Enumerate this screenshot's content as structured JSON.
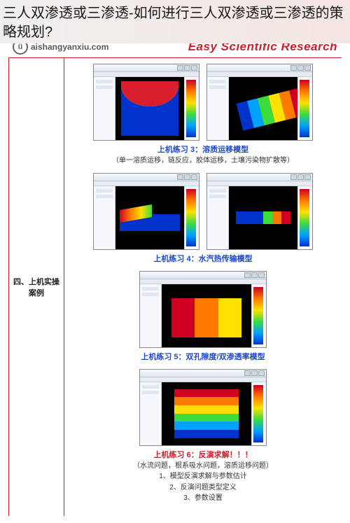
{
  "page_title": "三人双渗透或三渗透-如何进行三人双渗透或三渗透的策略规划?",
  "watermark": {
    "logo_glyph": "ü",
    "url": "aishangyanxiu.com",
    "tagline": "Easy Scientific Research"
  },
  "border_color": "#cc1f2a",
  "side_label": "四、上机实操案例",
  "palette": [
    "#d00022",
    "#ff7a00",
    "#ffe100",
    "#3ddc3d",
    "#00a2ff",
    "#0033cc"
  ],
  "exercises": {
    "e3": {
      "title": "上机练习 3：溶质运移模型",
      "sub": "（单一溶质运移，链反应，胶体运移，土壤污染物扩散等）"
    },
    "e4": {
      "title": "上机练习 4：水汽热传输模型"
    },
    "e5": {
      "title": "上机练习 5：双孔隙度/双渗透率模型"
    },
    "e6": {
      "title": "上机练习 6：反演求解！！！",
      "sub1": "（水流问题，根系吸水问题，溶质运移问题）",
      "sub2": "1、模型反演求解与参数估计",
      "sub3": "2、反演问题类型定义",
      "sub4": "3、参数设置"
    }
  }
}
